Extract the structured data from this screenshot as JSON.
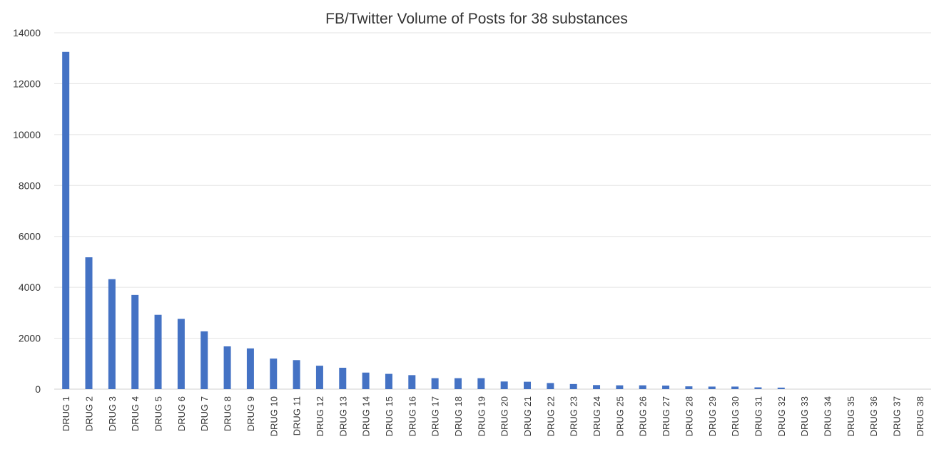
{
  "chart_data": {
    "type": "bar",
    "title": "FB/Twitter Volume of Posts for 38 substances",
    "xlabel": "",
    "ylabel": "",
    "ylim": [
      0,
      14000
    ],
    "yticks": [
      0,
      2000,
      4000,
      6000,
      8000,
      10000,
      12000,
      14000
    ],
    "grid": true,
    "legend": "none",
    "bar_color": "#4472C4",
    "categories": [
      "DRUG 1",
      "DRUG 2",
      "DRUG 3",
      "DRUG 4",
      "DRUG 5",
      "DRUG 6",
      "DRUG 7",
      "DRUG 8",
      "DRUG 9",
      "DRUG 10",
      "DRUG 11",
      "DRUG 12",
      "DRUG 13",
      "DRUG 14",
      "DRUG 15",
      "DRUG 16",
      "DRUG 17",
      "DRUG 18",
      "DRUG 19",
      "DRUG 20",
      "DRUG 21",
      "DRUG 22",
      "DRUG 23",
      "DRUG 24",
      "DRUG 25",
      "DRUG 26",
      "DRUG 27",
      "DRUG 28",
      "DRUG 29",
      "DRUG 30",
      "DRUG 31",
      "DRUG 32",
      "DRUG 33",
      "DRUG 34",
      "DRUG 35",
      "DRUG 36",
      "DRUG 37",
      "DRUG 38"
    ],
    "values": [
      13250,
      5180,
      4320,
      3700,
      2920,
      2760,
      2270,
      1680,
      1600,
      1200,
      1140,
      920,
      840,
      650,
      600,
      550,
      430,
      430,
      430,
      300,
      290,
      240,
      200,
      160,
      150,
      150,
      140,
      110,
      100,
      100,
      70,
      60,
      0,
      0,
      0,
      0,
      0,
      0
    ]
  }
}
